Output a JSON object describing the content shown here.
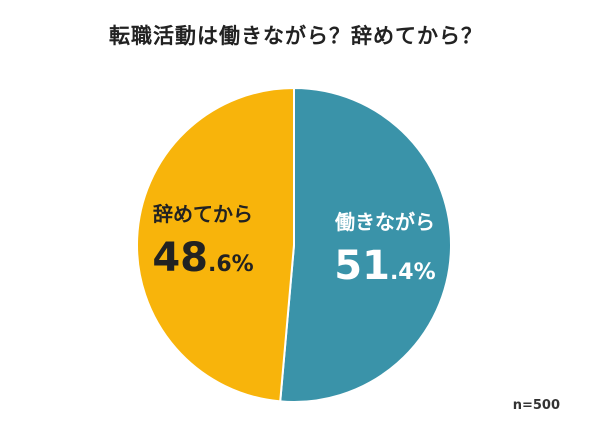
{
  "title": "転職活動は働きながら？辞めてから？",
  "note": "n=500",
  "chart_data": {
    "type": "pie",
    "title": "転職活動は働きながら？辞めてから？",
    "slices": [
      {
        "label": "働きながら",
        "value": 51.4,
        "int_part": "51",
        "dec_part": ".4%",
        "color": "#3a93a9",
        "text_color": "#ffffff"
      },
      {
        "label": "辞めてから",
        "value": 48.6,
        "int_part": "48",
        "dec_part": ".6%",
        "color": "#f8b40b",
        "text_color": "#222222"
      }
    ],
    "start_angle_deg": 0,
    "direction": "clockwise",
    "legend": "none"
  }
}
